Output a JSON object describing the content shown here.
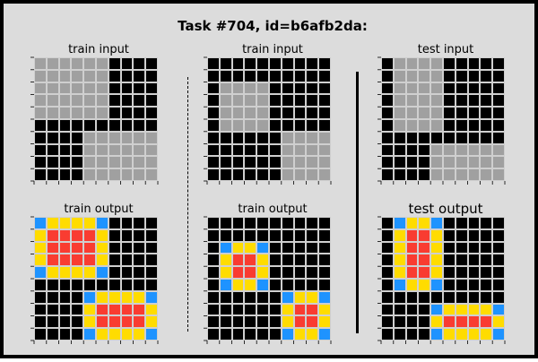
{
  "title": "Task #704, id=b6afb2da:",
  "palette": {
    "0": "#000000",
    "1": "#1e93ff",
    "2": "#f93c31",
    "4": "#ffdc00",
    "5": "#a0a0a0"
  },
  "panels": [
    {
      "label": "train input",
      "grid": [
        [
          5,
          5,
          5,
          5,
          5,
          5,
          0,
          0,
          0,
          0
        ],
        [
          5,
          5,
          5,
          5,
          5,
          5,
          0,
          0,
          0,
          0
        ],
        [
          5,
          5,
          5,
          5,
          5,
          5,
          0,
          0,
          0,
          0
        ],
        [
          5,
          5,
          5,
          5,
          5,
          5,
          0,
          0,
          0,
          0
        ],
        [
          5,
          5,
          5,
          5,
          5,
          5,
          0,
          0,
          0,
          0
        ],
        [
          0,
          0,
          0,
          0,
          0,
          0,
          0,
          0,
          0,
          0
        ],
        [
          0,
          0,
          0,
          0,
          5,
          5,
          5,
          5,
          5,
          5
        ],
        [
          0,
          0,
          0,
          0,
          5,
          5,
          5,
          5,
          5,
          5
        ],
        [
          0,
          0,
          0,
          0,
          5,
          5,
          5,
          5,
          5,
          5
        ],
        [
          0,
          0,
          0,
          0,
          5,
          5,
          5,
          5,
          5,
          5
        ]
      ]
    },
    {
      "label": "train input",
      "grid": [
        [
          0,
          0,
          0,
          0,
          0,
          0,
          0,
          0,
          0,
          0
        ],
        [
          0,
          0,
          0,
          0,
          0,
          0,
          0,
          0,
          0,
          0
        ],
        [
          0,
          5,
          5,
          5,
          5,
          0,
          0,
          0,
          0,
          0
        ],
        [
          0,
          5,
          5,
          5,
          5,
          0,
          0,
          0,
          0,
          0
        ],
        [
          0,
          5,
          5,
          5,
          5,
          0,
          0,
          0,
          0,
          0
        ],
        [
          0,
          5,
          5,
          5,
          5,
          0,
          0,
          0,
          0,
          0
        ],
        [
          0,
          0,
          0,
          0,
          0,
          0,
          5,
          5,
          5,
          5
        ],
        [
          0,
          0,
          0,
          0,
          0,
          0,
          5,
          5,
          5,
          5
        ],
        [
          0,
          0,
          0,
          0,
          0,
          0,
          5,
          5,
          5,
          5
        ],
        [
          0,
          0,
          0,
          0,
          0,
          0,
          5,
          5,
          5,
          5
        ]
      ]
    },
    {
      "label": "test input",
      "grid": [
        [
          0,
          5,
          5,
          5,
          5,
          0,
          0,
          0,
          0,
          0
        ],
        [
          0,
          5,
          5,
          5,
          5,
          0,
          0,
          0,
          0,
          0
        ],
        [
          0,
          5,
          5,
          5,
          5,
          0,
          0,
          0,
          0,
          0
        ],
        [
          0,
          5,
          5,
          5,
          5,
          0,
          0,
          0,
          0,
          0
        ],
        [
          0,
          5,
          5,
          5,
          5,
          0,
          0,
          0,
          0,
          0
        ],
        [
          0,
          5,
          5,
          5,
          5,
          0,
          0,
          0,
          0,
          0
        ],
        [
          0,
          0,
          0,
          0,
          0,
          0,
          0,
          0,
          0,
          0
        ],
        [
          0,
          0,
          0,
          0,
          5,
          5,
          5,
          5,
          5,
          5
        ],
        [
          0,
          0,
          0,
          0,
          5,
          5,
          5,
          5,
          5,
          5
        ],
        [
          0,
          0,
          0,
          0,
          5,
          5,
          5,
          5,
          5,
          5
        ]
      ]
    },
    {
      "label": "train output",
      "grid": [
        [
          1,
          4,
          4,
          4,
          4,
          1,
          0,
          0,
          0,
          0
        ],
        [
          4,
          2,
          2,
          2,
          2,
          4,
          0,
          0,
          0,
          0
        ],
        [
          4,
          2,
          2,
          2,
          2,
          4,
          0,
          0,
          0,
          0
        ],
        [
          4,
          2,
          2,
          2,
          2,
          4,
          0,
          0,
          0,
          0
        ],
        [
          1,
          4,
          4,
          4,
          4,
          1,
          0,
          0,
          0,
          0
        ],
        [
          0,
          0,
          0,
          0,
          0,
          0,
          0,
          0,
          0,
          0
        ],
        [
          0,
          0,
          0,
          0,
          1,
          4,
          4,
          4,
          4,
          1
        ],
        [
          0,
          0,
          0,
          0,
          4,
          2,
          2,
          2,
          2,
          4
        ],
        [
          0,
          0,
          0,
          0,
          4,
          2,
          2,
          2,
          2,
          4
        ],
        [
          0,
          0,
          0,
          0,
          1,
          4,
          4,
          4,
          4,
          1
        ]
      ]
    },
    {
      "label": "train output",
      "grid": [
        [
          0,
          0,
          0,
          0,
          0,
          0,
          0,
          0,
          0,
          0
        ],
        [
          0,
          0,
          0,
          0,
          0,
          0,
          0,
          0,
          0,
          0
        ],
        [
          0,
          1,
          4,
          4,
          1,
          0,
          0,
          0,
          0,
          0
        ],
        [
          0,
          4,
          2,
          2,
          4,
          0,
          0,
          0,
          0,
          0
        ],
        [
          0,
          4,
          2,
          2,
          4,
          0,
          0,
          0,
          0,
          0
        ],
        [
          0,
          1,
          4,
          4,
          1,
          0,
          0,
          0,
          0,
          0
        ],
        [
          0,
          0,
          0,
          0,
          0,
          0,
          1,
          4,
          4,
          1
        ],
        [
          0,
          0,
          0,
          0,
          0,
          0,
          4,
          2,
          2,
          4
        ],
        [
          0,
          0,
          0,
          0,
          0,
          0,
          4,
          2,
          2,
          4
        ],
        [
          0,
          0,
          0,
          0,
          0,
          0,
          1,
          4,
          4,
          1
        ]
      ]
    },
    {
      "label": "test output",
      "grid": [
        [
          0,
          1,
          4,
          4,
          1,
          0,
          0,
          0,
          0,
          0
        ],
        [
          0,
          4,
          2,
          2,
          4,
          0,
          0,
          0,
          0,
          0
        ],
        [
          0,
          4,
          2,
          2,
          4,
          0,
          0,
          0,
          0,
          0
        ],
        [
          0,
          4,
          2,
          2,
          4,
          0,
          0,
          0,
          0,
          0
        ],
        [
          0,
          4,
          2,
          2,
          4,
          0,
          0,
          0,
          0,
          0
        ],
        [
          0,
          1,
          4,
          4,
          1,
          0,
          0,
          0,
          0,
          0
        ],
        [
          0,
          0,
          0,
          0,
          0,
          0,
          0,
          0,
          0,
          0
        ],
        [
          0,
          0,
          0,
          0,
          1,
          4,
          4,
          4,
          4,
          1
        ],
        [
          0,
          0,
          0,
          0,
          4,
          2,
          2,
          2,
          2,
          4
        ],
        [
          0,
          0,
          0,
          0,
          1,
          4,
          4,
          4,
          4,
          1
        ]
      ]
    }
  ]
}
